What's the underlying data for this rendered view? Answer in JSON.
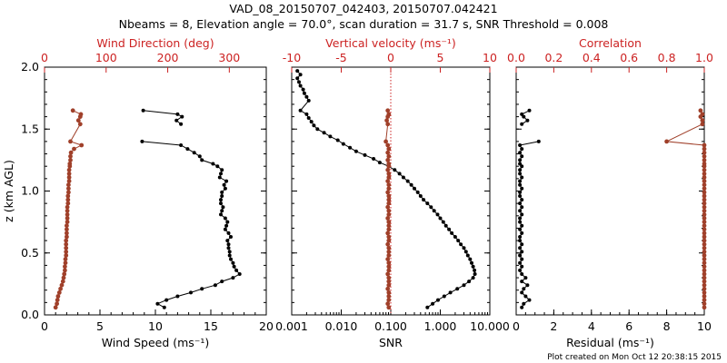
{
  "title_line1": "VAD_08_20150707_042403, 20150707.042421",
  "title_line2": "Nbeams = 8, Elevation angle = 70.0°, scan duration = 31.7 s, SNR Threshold = 0.008",
  "footer": "Plot created on Mon Oct 12 20:38:15 2015",
  "colors": {
    "black": "#000000",
    "red": "#cc2222",
    "brown": "#a0402a"
  },
  "chart_data": [
    {
      "type": "line",
      "panel": "wind",
      "ylabel": "z (km AGL)",
      "ylim": [
        0,
        2
      ],
      "yticks": [
        "0.0",
        "0.5",
        "1.0",
        "1.5",
        "2.0"
      ],
      "xlabel": "Wind Speed (ms⁻¹)",
      "xlim": [
        0,
        20
      ],
      "xticks": [
        "0",
        "5",
        "10",
        "15",
        "20"
      ],
      "top_label": "Wind Direction (deg)",
      "top_xlim": [
        0,
        360
      ],
      "top_ticks": [
        "0",
        "100",
        "200",
        "300"
      ],
      "series": [
        {
          "name": "Wind Speed",
          "color": "#000000",
          "z": [
            1.65,
            1.62,
            1.6,
            1.57,
            1.54,
            1.4,
            1.37,
            1.34,
            1.31,
            1.28,
            1.25,
            1.22,
            1.2,
            1.17,
            1.14,
            1.11,
            1.08,
            1.05,
            1.02,
            0.99,
            0.96,
            0.93,
            0.9,
            0.87,
            0.84,
            0.81,
            0.78,
            0.75,
            0.72,
            0.69,
            0.66,
            0.63,
            0.6,
            0.57,
            0.54,
            0.51,
            0.48,
            0.45,
            0.42,
            0.39,
            0.36,
            0.33,
            0.3,
            0.27,
            0.24,
            0.21,
            0.18,
            0.15,
            0.12,
            0.09,
            0.06
          ],
          "x": [
            8.9,
            12.0,
            12.4,
            11.9,
            12.3,
            8.8,
            12.3,
            12.9,
            13.5,
            14.0,
            14.2,
            15.2,
            15.6,
            16.0,
            15.9,
            15.8,
            16.4,
            16.2,
            16.3,
            16.0,
            16.0,
            15.9,
            15.9,
            16.1,
            16.0,
            15.9,
            16.3,
            16.5,
            16.4,
            16.3,
            16.6,
            16.8,
            16.5,
            16.6,
            16.6,
            16.7,
            16.7,
            16.8,
            17.0,
            17.1,
            17.3,
            17.6,
            17.0,
            16.0,
            15.4,
            14.2,
            13.2,
            12.0,
            11.0,
            10.2,
            10.8
          ]
        },
        {
          "name": "Wind Direction",
          "color": "#a0402a",
          "z": [
            1.65,
            1.62,
            1.6,
            1.57,
            1.54,
            1.4,
            1.37,
            1.34,
            1.31,
            1.28,
            1.25,
            1.22,
            1.2,
            1.17,
            1.14,
            1.11,
            1.08,
            1.05,
            1.02,
            0.99,
            0.96,
            0.93,
            0.9,
            0.87,
            0.84,
            0.81,
            0.78,
            0.75,
            0.72,
            0.69,
            0.66,
            0.63,
            0.6,
            0.57,
            0.54,
            0.51,
            0.48,
            0.45,
            0.42,
            0.39,
            0.36,
            0.33,
            0.3,
            0.27,
            0.24,
            0.21,
            0.18,
            0.15,
            0.12,
            0.09,
            0.06
          ],
          "x": [
            46,
            59,
            58,
            55,
            58,
            42,
            60,
            48,
            43,
            42,
            42,
            41,
            41,
            40,
            40,
            40,
            40,
            39,
            39,
            39,
            38,
            38,
            38,
            37,
            37,
            37,
            37,
            37,
            36,
            36,
            36,
            36,
            35,
            35,
            35,
            35,
            35,
            34,
            34,
            33,
            33,
            32,
            31,
            30,
            28,
            26,
            24,
            22,
            21,
            20,
            18
          ]
        }
      ]
    },
    {
      "type": "line",
      "panel": "snr",
      "xlabel": "SNR",
      "xscale": "log",
      "xlim": [
        0.001,
        10
      ],
      "xticks": [
        "0.001",
        "0.010",
        "0.100",
        "1.000",
        "10.000"
      ],
      "top_label": "Vertical velocity (ms⁻¹)",
      "top_xlim": [
        -10,
        10
      ],
      "top_ticks": [
        "-10",
        "-5",
        "0",
        "5",
        "10"
      ],
      "zero_line": 0,
      "series": [
        {
          "name": "SNR",
          "color": "#000000",
          "z": [
            1.97,
            1.94,
            1.91,
            1.88,
            1.85,
            1.82,
            1.79,
            1.76,
            1.73,
            1.65,
            1.62,
            1.59,
            1.56,
            1.53,
            1.5,
            1.47,
            1.44,
            1.41,
            1.38,
            1.35,
            1.32,
            1.29,
            1.26,
            1.23,
            1.2,
            1.17,
            1.14,
            1.11,
            1.08,
            1.05,
            1.02,
            0.99,
            0.96,
            0.93,
            0.9,
            0.87,
            0.84,
            0.81,
            0.78,
            0.75,
            0.72,
            0.69,
            0.66,
            0.63,
            0.6,
            0.57,
            0.54,
            0.51,
            0.48,
            0.45,
            0.42,
            0.39,
            0.36,
            0.33,
            0.3,
            0.27,
            0.24,
            0.21,
            0.18,
            0.15,
            0.12,
            0.09,
            0.06
          ],
          "x": [
            0.0013,
            0.0015,
            0.0013,
            0.0014,
            0.0015,
            0.0017,
            0.0018,
            0.002,
            0.0022,
            0.0015,
            0.002,
            0.0022,
            0.0025,
            0.0028,
            0.0033,
            0.0045,
            0.006,
            0.0085,
            0.011,
            0.015,
            0.02,
            0.03,
            0.045,
            0.06,
            0.09,
            0.12,
            0.15,
            0.18,
            0.22,
            0.26,
            0.3,
            0.35,
            0.4,
            0.46,
            0.55,
            0.65,
            0.75,
            0.88,
            1.0,
            1.15,
            1.3,
            1.5,
            1.7,
            2.0,
            2.3,
            2.6,
            3.0,
            3.3,
            3.6,
            4.0,
            4.3,
            4.6,
            4.9,
            5.0,
            4.6,
            3.8,
            3.0,
            2.2,
            1.6,
            1.2,
            0.9,
            0.7,
            0.55
          ]
        },
        {
          "name": "Vertical velocity",
          "color": "#a0402a",
          "z": [
            1.65,
            1.62,
            1.6,
            1.57,
            1.54,
            1.4,
            1.37,
            1.34,
            1.31,
            1.28,
            1.25,
            1.22,
            1.2,
            1.17,
            1.14,
            1.11,
            1.08,
            1.05,
            1.02,
            0.99,
            0.96,
            0.93,
            0.9,
            0.87,
            0.84,
            0.81,
            0.78,
            0.75,
            0.72,
            0.69,
            0.66,
            0.63,
            0.6,
            0.57,
            0.54,
            0.51,
            0.48,
            0.45,
            0.42,
            0.39,
            0.36,
            0.33,
            0.3,
            0.27,
            0.24,
            0.21,
            0.18,
            0.15,
            0.12,
            0.09,
            0.06
          ],
          "x": [
            -0.3,
            -0.2,
            -0.3,
            -0.4,
            -0.3,
            -0.5,
            -0.3,
            -0.2,
            -0.3,
            -0.2,
            -0.3,
            -0.2,
            -0.2,
            -0.3,
            -0.2,
            -0.2,
            -0.3,
            -0.2,
            -0.2,
            -0.3,
            -0.2,
            -0.2,
            -0.2,
            -0.3,
            -0.2,
            -0.2,
            -0.3,
            -0.2,
            -0.2,
            -0.2,
            -0.3,
            -0.2,
            -0.2,
            -0.3,
            -0.2,
            -0.2,
            -0.2,
            -0.3,
            -0.2,
            -0.2,
            -0.2,
            -0.3,
            -0.2,
            -0.2,
            -0.2,
            -0.3,
            -0.2,
            -0.2,
            -0.2,
            -0.3,
            -0.2
          ]
        }
      ]
    },
    {
      "type": "line",
      "panel": "residual",
      "xlabel": "Residual (ms⁻¹)",
      "xlim": [
        0,
        10
      ],
      "xticks": [
        "0",
        "2",
        "4",
        "6",
        "8",
        "10"
      ],
      "top_label": "Correlation",
      "top_xlim": [
        0,
        1
      ],
      "top_ticks": [
        "0.0",
        "0.2",
        "0.4",
        "0.6",
        "0.8",
        "1.0"
      ],
      "series": [
        {
          "name": "Residual",
          "color": "#000000",
          "z": [
            1.65,
            1.62,
            1.6,
            1.57,
            1.54,
            1.4,
            1.37,
            1.34,
            1.31,
            1.28,
            1.25,
            1.22,
            1.2,
            1.17,
            1.14,
            1.11,
            1.08,
            1.05,
            1.02,
            0.99,
            0.96,
            0.93,
            0.9,
            0.87,
            0.84,
            0.81,
            0.78,
            0.75,
            0.72,
            0.69,
            0.66,
            0.63,
            0.6,
            0.57,
            0.54,
            0.51,
            0.48,
            0.45,
            0.42,
            0.39,
            0.36,
            0.33,
            0.3,
            0.27,
            0.24,
            0.21,
            0.18,
            0.15,
            0.12,
            0.09,
            0.06
          ],
          "x": [
            0.7,
            0.3,
            0.4,
            0.6,
            0.3,
            1.2,
            0.2,
            0.3,
            0.2,
            0.3,
            0.2,
            0.2,
            0.3,
            0.2,
            0.2,
            0.3,
            0.2,
            0.2,
            0.3,
            0.2,
            0.2,
            0.3,
            0.2,
            0.3,
            0.2,
            0.3,
            0.2,
            0.2,
            0.3,
            0.2,
            0.3,
            0.2,
            0.2,
            0.3,
            0.2,
            0.3,
            0.2,
            0.3,
            0.2,
            0.3,
            0.2,
            0.3,
            0.5,
            0.3,
            0.6,
            0.4,
            0.3,
            0.5,
            0.7,
            0.4,
            0.3
          ]
        },
        {
          "name": "Correlation",
          "color": "#a0402a",
          "z": [
            1.65,
            1.62,
            1.6,
            1.57,
            1.54,
            1.4,
            1.37,
            1.34,
            1.31,
            1.28,
            1.25,
            1.22,
            1.2,
            1.17,
            1.14,
            1.11,
            1.08,
            1.05,
            1.02,
            0.99,
            0.96,
            0.93,
            0.9,
            0.87,
            0.84,
            0.81,
            0.78,
            0.75,
            0.72,
            0.69,
            0.66,
            0.63,
            0.6,
            0.57,
            0.54,
            0.51,
            0.48,
            0.45,
            0.42,
            0.39,
            0.36,
            0.33,
            0.3,
            0.27,
            0.24,
            0.21,
            0.18,
            0.15,
            0.12,
            0.09,
            0.06
          ],
          "x": [
            0.98,
            0.99,
            0.98,
            0.99,
            0.99,
            0.8,
            1.0,
            1.0,
            1.0,
            1.0,
            1.0,
            1.0,
            1.0,
            1.0,
            1.0,
            1.0,
            1.0,
            1.0,
            1.0,
            1.0,
            1.0,
            1.0,
            1.0,
            1.0,
            1.0,
            1.0,
            1.0,
            1.0,
            1.0,
            1.0,
            1.0,
            1.0,
            1.0,
            1.0,
            1.0,
            1.0,
            1.0,
            1.0,
            1.0,
            1.0,
            1.0,
            1.0,
            1.0,
            1.0,
            1.0,
            1.0,
            1.0,
            1.0,
            1.0,
            1.0,
            1.0
          ]
        }
      ]
    }
  ]
}
